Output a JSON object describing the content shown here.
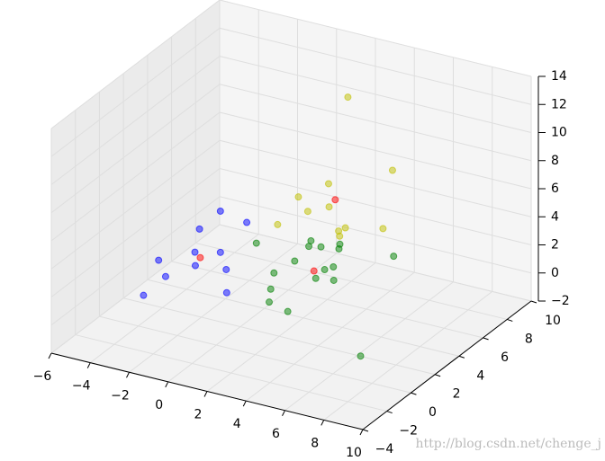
{
  "chart_data": {
    "type": "scatter3d",
    "xlim": [
      -6,
      10
    ],
    "ylim": [
      -4,
      10
    ],
    "zlim": [
      -2,
      14
    ],
    "xticks": [
      {
        "value": -6,
        "label": "−6"
      },
      {
        "value": -4,
        "label": "−4"
      },
      {
        "value": -2,
        "label": "−2"
      },
      0,
      2,
      4,
      6,
      8,
      10
    ],
    "yticks": [
      {
        "value": -4,
        "label": "−4"
      },
      {
        "value": -2,
        "label": "−2"
      },
      0,
      2,
      4,
      6,
      8,
      10
    ],
    "zticks": [
      {
        "value": -2,
        "label": "−2"
      },
      0,
      2,
      4,
      6,
      8,
      10,
      12,
      14
    ],
    "grid": true,
    "series": [
      {
        "color": "#0000ff",
        "x": [
          -3.8,
          -3.7,
          -2.2,
          -2.7,
          -1.7,
          -3.7,
          -2.0,
          -0.6,
          -2.6,
          0.6,
          -2.5
        ],
        "y": [
          6.5,
          4.6,
          6.1,
          2.6,
          3.1,
          1.2,
          1.5,
          1.8,
          0.0,
          -0.1,
          -2.0
        ],
        "z": [
          2,
          2,
          2,
          2,
          2,
          2,
          2,
          2,
          2,
          2,
          2
        ]
      },
      {
        "color": "#ff0000",
        "x": [
          0.8,
          -1.5,
          3.6
        ],
        "y": [
          8.6,
          1.1,
          2.3
        ],
        "z": [
          3,
          3,
          3
        ]
      },
      {
        "color": "#bfbf00",
        "x": [
          2.5,
          5.1,
          3.3,
          2.8,
          4.5,
          3.9,
          3.4,
          6.2,
          6.1,
          6.4,
          7.7
        ],
        "y": [
          6.9,
          6.4,
          4.0,
          2.3,
          2.1,
          1.3,
          -0.4,
          0.7,
          0.3,
          -0.1,
          1.4
        ],
        "z": [
          12,
          8,
          8,
          8,
          8,
          8,
          8,
          8,
          8,
          8,
          8
        ]
      },
      {
        "color": "#008000",
        "x": [
          -2.2,
          -0.2,
          1.1,
          0.0,
          0.5,
          1.3,
          0.2,
          3.8,
          0.0,
          1.8,
          2.0,
          1.9,
          2.7,
          0.7,
          1.3,
          2.5,
          7.6
        ],
        "y": [
          6.9,
          8.2,
          8.5,
          7.7,
          7.9,
          8.1,
          6.2,
          8.6,
          4.8,
          6.1,
          6.5,
          5.2,
          5.4,
          3.4,
          2.3,
          1.9,
          -0.3
        ],
        "z": [
          0,
          0,
          0,
          0,
          0,
          0,
          0,
          0,
          0,
          0,
          0,
          0,
          0,
          0,
          0,
          0,
          0
        ]
      }
    ]
  },
  "watermark": "http://blog.csdn.net/chenge_j"
}
